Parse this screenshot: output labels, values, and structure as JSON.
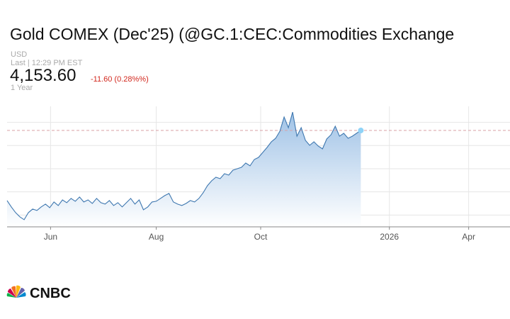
{
  "header": {
    "title": "Gold COMEX (Dec'25) (@GC.1:CEC:Commodities Exchange",
    "currency": "USD",
    "last": "Last | 12:29 PM EST",
    "price": "4,153.60",
    "change": "-11.60 (0.28%%)",
    "range": "1 Year"
  },
  "chart_data": {
    "type": "line",
    "watermark": "CNBC",
    "series": [
      {
        "name": "Gold COMEX",
        "color": "#3f78b0",
        "values": [
          3322,
          3246,
          3179,
          3129,
          3095,
          3179,
          3221,
          3204,
          3246,
          3280,
          3238,
          3305,
          3263,
          3330,
          3297,
          3347,
          3314,
          3364,
          3305,
          3330,
          3288,
          3347,
          3297,
          3280,
          3322,
          3263,
          3297,
          3246,
          3297,
          3347,
          3280,
          3330,
          3213,
          3246,
          3305,
          3314,
          3347,
          3381,
          3406,
          3305,
          3280,
          3263,
          3288,
          3322,
          3305,
          3347,
          3414,
          3498,
          3557,
          3599,
          3582,
          3641,
          3624,
          3683,
          3700,
          3717,
          3767,
          3734,
          3809,
          3834,
          3893,
          3952,
          4019,
          4061,
          4145,
          4313,
          4187,
          4372,
          4086,
          4187,
          4036,
          3977,
          4019,
          3969,
          3935,
          4053,
          4103,
          4204,
          4086,
          4120,
          4061,
          4086,
          4120,
          4153.6
        ]
      }
    ],
    "xlim": [
      0,
      118
    ],
    "xticks": [
      {
        "value": 10.2,
        "label": "Jun"
      },
      {
        "value": 35,
        "label": "Aug"
      },
      {
        "value": 59.5,
        "label": "Oct"
      },
      {
        "value": 89.7,
        "label": "2026"
      },
      {
        "value": 108.3,
        "label": "Apr"
      }
    ],
    "ylim": [
      3010,
      4440
    ],
    "yticks": [
      3150,
      3425,
      3700,
      3975,
      4250
    ],
    "grid": true
  },
  "footer": {
    "logo": "CNBC"
  }
}
